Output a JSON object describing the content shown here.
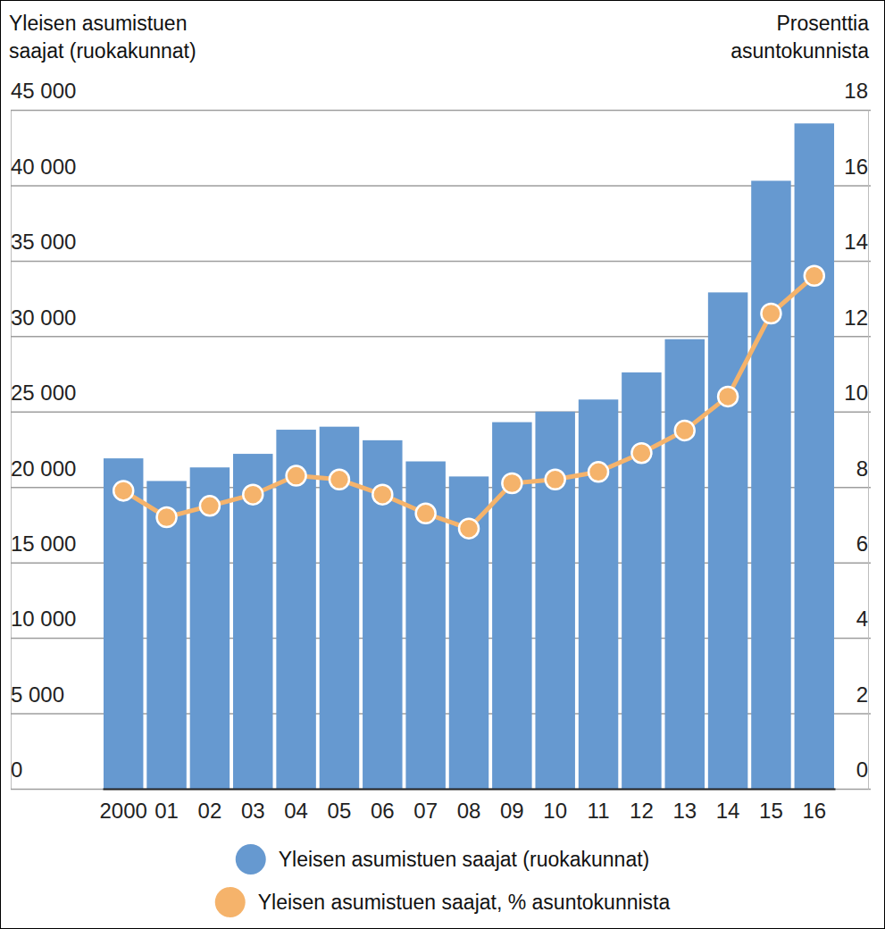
{
  "chart_data": {
    "type": "bar",
    "ylabel": [
      "Yleisen asumistuen",
      "saajat (ruokakunnat)"
    ],
    "y2label": [
      "Prosenttia",
      "asuntokunnista"
    ],
    "categories": [
      "2000",
      "01",
      "02",
      "03",
      "04",
      "05",
      "06",
      "07",
      "08",
      "09",
      "10",
      "11",
      "12",
      "13",
      "14",
      "15",
      "16"
    ],
    "series": [
      {
        "name": "Yleisen asumistuen saajat (ruokakunnat)",
        "type": "bar",
        "color": "#6699d0",
        "values": [
          21900,
          20400,
          21300,
          22200,
          23800,
          24000,
          23100,
          21700,
          20700,
          24300,
          25000,
          25800,
          27600,
          29800,
          32900,
          40300,
          44100
        ]
      },
      {
        "name": "Yleisen asumistuen saajat, % asuntokunnista",
        "type": "line",
        "axis": "y2",
        "color": "#f5b36b",
        "marker": "circle",
        "values": [
          7.9,
          7.2,
          7.5,
          7.8,
          8.3,
          8.2,
          7.8,
          7.3,
          6.9,
          8.1,
          8.2,
          8.4,
          8.9,
          9.5,
          10.4,
          12.6,
          13.6
        ]
      }
    ],
    "ylim": [
      0,
      45000
    ],
    "yticks": [
      0,
      {
        "value": 5000,
        "label": "5 000"
      },
      {
        "value": 10000,
        "label": "10 000"
      },
      {
        "value": 15000,
        "label": "15 000"
      },
      {
        "value": 20000,
        "label": "20 000"
      },
      {
        "value": 25000,
        "label": "25 000"
      },
      {
        "value": 30000,
        "label": "30 000"
      },
      {
        "value": 35000,
        "label": "35 000"
      },
      {
        "value": 40000,
        "label": "40 000"
      },
      {
        "value": 45000,
        "label": "45 000"
      }
    ],
    "y2lim": [
      0,
      18
    ],
    "y2ticks": [
      0,
      2,
      4,
      6,
      8,
      10,
      12,
      14,
      16,
      18
    ],
    "grid": true,
    "legend": "bottom"
  }
}
